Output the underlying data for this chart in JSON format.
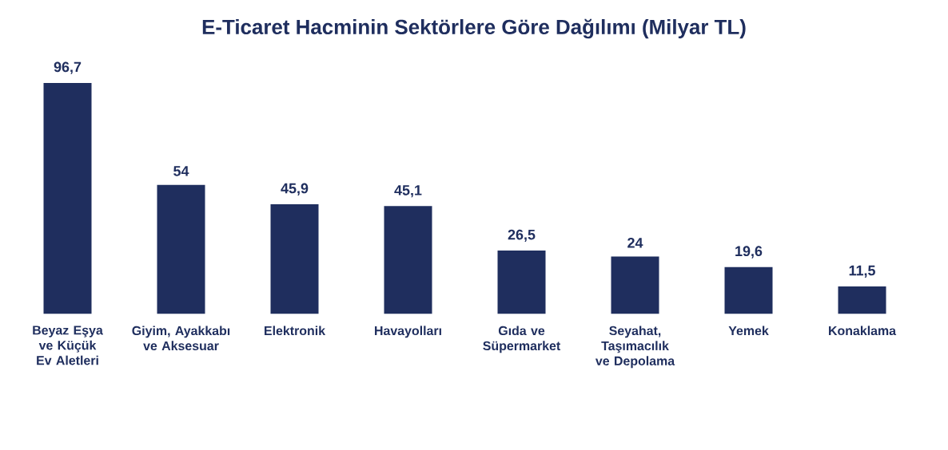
{
  "chart_data": {
    "type": "bar",
    "title": "E-Ticaret Hacminin Sektörlere Göre Dağılımı (Milyar TL)",
    "categories": [
      "Beyaz Eşya ve Küçük Ev Aletleri",
      "Giyim, Ayakkabı ve Aksesuar",
      "Elektronik",
      "Havayolları",
      "Gıda ve Süpermarket",
      "Seyahat, Taşımacılık ve Depolama",
      "Yemek",
      "Konaklama"
    ],
    "values": [
      96.7,
      54,
      45.9,
      45.1,
      26.5,
      24,
      19.6,
      11.5
    ],
    "value_labels": [
      "96,7",
      "54",
      "45,9",
      "45,1",
      "26,5",
      "24",
      "19,6",
      "11,5"
    ],
    "color": "#1f2e5e"
  }
}
